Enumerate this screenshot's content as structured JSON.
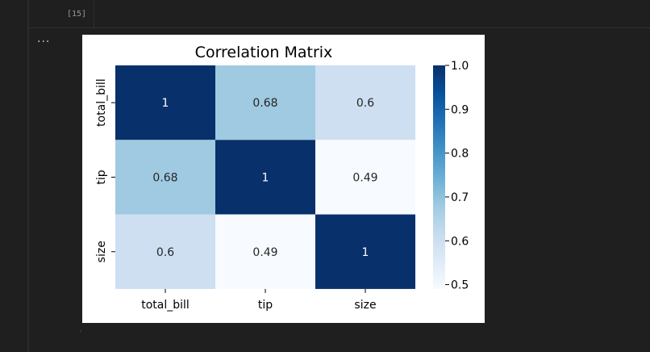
{
  "cell": {
    "execution_count": "[15]",
    "output_more": "..."
  },
  "chart_data": {
    "type": "heatmap",
    "title": "Correlation Matrix",
    "rows": [
      "total_bill",
      "tip",
      "size"
    ],
    "columns": [
      "total_bill",
      "tip",
      "size"
    ],
    "values": [
      [
        1,
        0.68,
        0.6
      ],
      [
        0.68,
        1,
        0.49
      ],
      [
        0.6,
        0.49,
        1
      ]
    ],
    "annotations": [
      [
        "1",
        "0.68",
        "0.6"
      ],
      [
        "0.68",
        "1",
        "0.49"
      ],
      [
        "0.6",
        "0.49",
        "1"
      ]
    ],
    "colormap": "Blues",
    "colorbar": {
      "vmin": 0.49,
      "vmax": 1.0,
      "ticks": [
        "0.5",
        "0.6",
        "0.7",
        "0.8",
        "0.9",
        "1.0"
      ],
      "tick_values": [
        0.5,
        0.6,
        0.7,
        0.8,
        0.9,
        1.0
      ]
    },
    "colors": {
      "low": "#f7fbff",
      "high": "#08306b"
    }
  }
}
